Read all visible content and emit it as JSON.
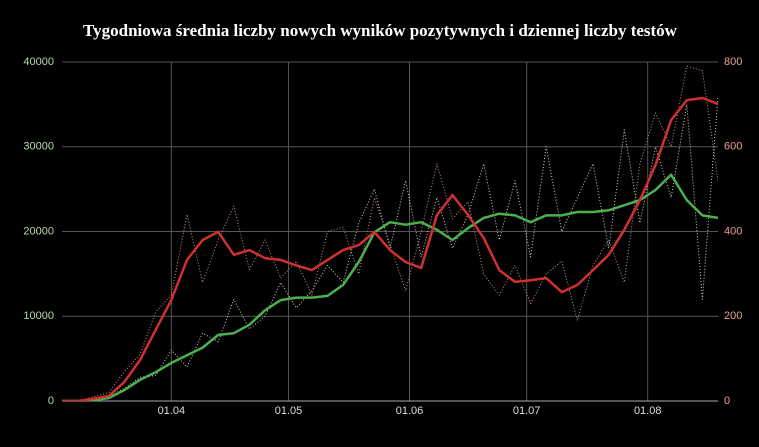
{
  "chart_data": {
    "type": "line",
    "title": "Tygodniowa średnia liczby nowych wyników pozytywnych i dziennej liczby testów",
    "x": [
      "04.03",
      "08.03",
      "12.03",
      "16.03",
      "20.03",
      "24.03",
      "28.03",
      "01.04",
      "05.04",
      "09.04",
      "13.04",
      "17.04",
      "21.04",
      "25.04",
      "29.04",
      "03.05",
      "07.05",
      "11.05",
      "15.05",
      "19.05",
      "23.05",
      "27.05",
      "31.05",
      "04.06",
      "08.06",
      "12.06",
      "16.06",
      "20.06",
      "24.06",
      "28.06",
      "02.07",
      "06.07",
      "10.07",
      "14.07",
      "18.07",
      "22.07",
      "26.07",
      "30.07",
      "03.08",
      "07.08",
      "11.08",
      "15.08",
      "19.08"
    ],
    "xlim": [
      "04.03",
      "19.08"
    ],
    "xticks": [
      "01.04",
      "01.05",
      "01.06",
      "01.07",
      "01.08"
    ],
    "ylim": [
      0,
      40000
    ],
    "yticks": [
      0,
      10000,
      20000,
      30000,
      40000
    ],
    "y2lim": [
      0,
      800
    ],
    "y2ticks": [
      0,
      200,
      400,
      600,
      800
    ],
    "grid": true,
    "series": [
      {
        "color": "#d8d0c0",
        "style": "dotted",
        "axis": "y",
        "values": [
          0,
          0,
          200,
          500,
          1500,
          2800,
          3000,
          6000,
          4000,
          8000,
          7000,
          12000,
          8500,
          10000,
          14000,
          11000,
          13000,
          16000,
          14000,
          21000,
          25000,
          18000,
          26000,
          17000,
          24000,
          18000,
          22000,
          28000,
          19000,
          26000,
          17000,
          30000,
          20000,
          24000,
          28000,
          18000,
          32000,
          21000,
          30000,
          24000,
          35000,
          12000,
          36000
        ]
      },
      {
        "color": "#c89484",
        "style": "dotted",
        "axis": "y2",
        "values": [
          0,
          0,
          10,
          20,
          70,
          110,
          210,
          250,
          440,
          280,
          380,
          460,
          310,
          380,
          290,
          330,
          250,
          400,
          410,
          300,
          480,
          370,
          260,
          400,
          560,
          430,
          470,
          300,
          250,
          320,
          230,
          300,
          330,
          190,
          320,
          380,
          280,
          560,
          680,
          600,
          790,
          780,
          520
        ]
      },
      {
        "color": "#4caf50",
        "style": "solid",
        "axis": "y",
        "values": [
          0,
          0,
          100,
          350,
          1300,
          2500,
          3400,
          4500,
          5400,
          6300,
          7800,
          8000,
          9000,
          10700,
          11900,
          12200,
          12200,
          12400,
          13700,
          16400,
          19900,
          21100,
          20800,
          21100,
          20200,
          19000,
          20400,
          21600,
          22100,
          21900,
          21100,
          21900,
          21900,
          22300,
          22300,
          22500,
          23100,
          23700,
          24900,
          26700,
          23700,
          21900,
          21600
        ]
      },
      {
        "color": "#d03030",
        "style": "solid",
        "axis": "y2",
        "values": [
          0,
          0,
          5,
          12,
          45,
          97,
          168,
          238,
          333,
          380,
          399,
          345,
          356,
          337,
          333,
          320,
          309,
          333,
          356,
          368,
          399,
          356,
          328,
          314,
          439,
          486,
          439,
          385,
          309,
          281,
          285,
          290,
          257,
          274,
          309,
          345,
          404,
          474,
          557,
          663,
          710,
          715,
          701
        ]
      }
    ]
  }
}
